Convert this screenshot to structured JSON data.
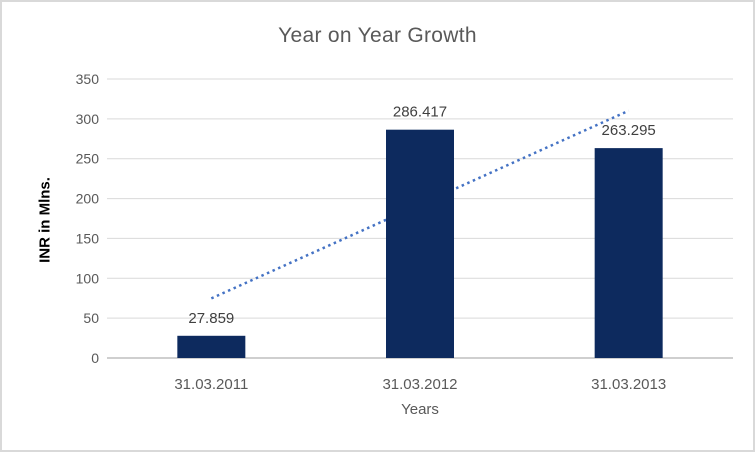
{
  "chart": {
    "colors": {
      "bar": "#0d2a5e",
      "trendline": "#4472c4",
      "gridline": "#d9d9d9",
      "axis_line": "#bfbfbf",
      "title_text": "#595959",
      "tick_text": "#595959",
      "data_label_text": "#404040",
      "border": "#d9d9d9",
      "background": "#ffffff"
    }
  },
  "chart_data": {
    "type": "bar",
    "title": "Year on Year Growth",
    "xlabel": "Years",
    "ylabel": "INR in Mlns.",
    "categories": [
      "31.03.2011",
      "31.03.2012",
      "31.03.2013"
    ],
    "values": [
      27.859,
      286.417,
      263.295
    ],
    "data_labels": [
      "27.859",
      "286.417",
      "263.295"
    ],
    "yticks": [
      0,
      50,
      100,
      150,
      200,
      250,
      300,
      350
    ],
    "ylim": [
      0,
      350
    ],
    "grid": true,
    "legend": false,
    "trendline": {
      "style": "dotted",
      "start_value": 74.8,
      "end_value": 310.2
    }
  }
}
